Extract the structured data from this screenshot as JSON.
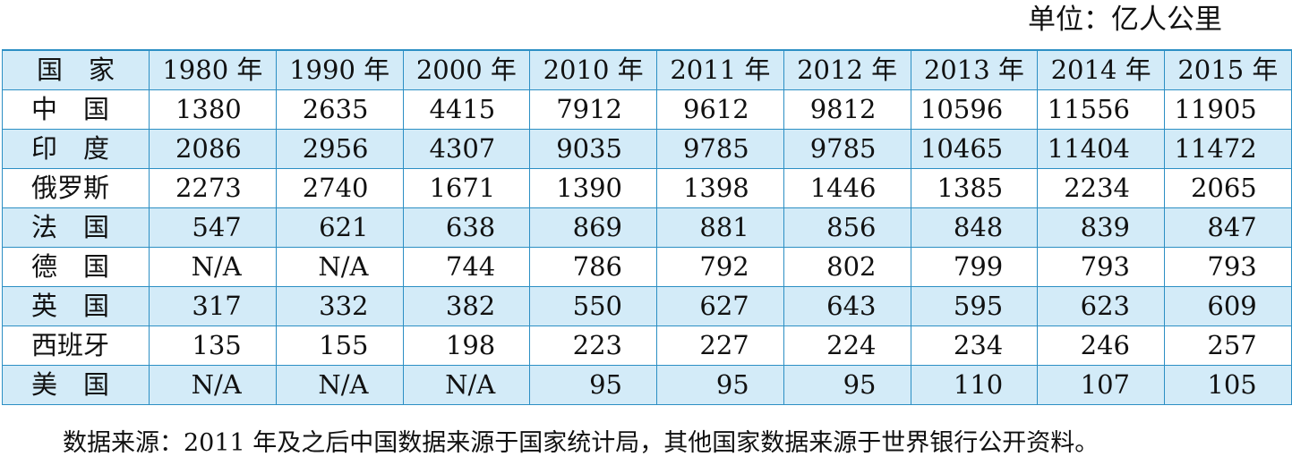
{
  "unit_label": "单位：亿人公里",
  "table": {
    "header": [
      "国　家",
      "1980 年",
      "1990 年",
      "2000 年",
      "2010 年",
      "2011 年",
      "2012 年",
      "2013 年",
      "2014 年",
      "2015 年"
    ],
    "rows": [
      {
        "country": "中　国",
        "values": [
          "1380",
          "2635",
          "4415",
          "7912",
          "9612",
          "9812",
          "10596",
          "11556",
          "11905"
        ]
      },
      {
        "country": "印　度",
        "values": [
          "2086",
          "2956",
          "4307",
          "9035",
          "9785",
          "9785",
          "10465",
          "11404",
          "11472"
        ]
      },
      {
        "country": "俄罗斯",
        "values": [
          "2273",
          "2740",
          "1671",
          "1390",
          "1398",
          "1446",
          "1385",
          "2234",
          "2065"
        ]
      },
      {
        "country": "法　国",
        "values": [
          "547",
          "621",
          "638",
          "869",
          "881",
          "856",
          "848",
          "839",
          "847"
        ]
      },
      {
        "country": "德　国",
        "values": [
          "N/A",
          "N/A",
          "744",
          "786",
          "792",
          "802",
          "799",
          "793",
          "793"
        ]
      },
      {
        "country": "英　国",
        "values": [
          "317",
          "332",
          "382",
          "550",
          "627",
          "643",
          "595",
          "623",
          "609"
        ]
      },
      {
        "country": "西班牙",
        "values": [
          "135",
          "155",
          "198",
          "223",
          "227",
          "224",
          "234",
          "246",
          "257"
        ]
      },
      {
        "country": "美　国",
        "values": [
          "N/A",
          "N/A",
          "N/A",
          "95",
          "95",
          "95",
          "110",
          "107",
          "105"
        ]
      }
    ]
  },
  "source_note": "数据来源：2011 年及之后中国数据来源于国家统计局，其他国家数据来源于世界银行公开资料。",
  "colors": {
    "border": "#2c8fc4",
    "band": "#d3ebf8"
  }
}
